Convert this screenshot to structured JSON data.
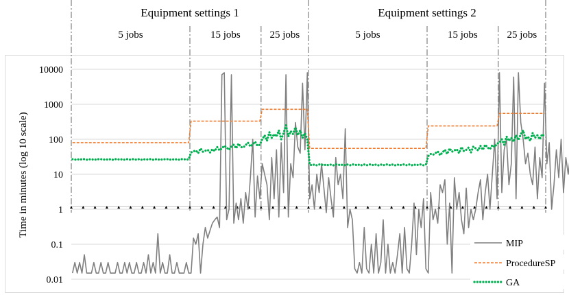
{
  "chart_data": {
    "type": "line",
    "ylabel": "Time in minutes (log 10 scale)",
    "yscale": "log",
    "ylim": [
      0.01,
      10000
    ],
    "yticks": [
      "10000",
      "1000",
      "100",
      "10",
      "1",
      "0.1",
      "0.01"
    ],
    "grid": true,
    "legend_position": "bottom-right",
    "groups": [
      {
        "label": "Equipment settings 1",
        "sections": [
          {
            "label": "5 jobs",
            "runs": 50
          },
          {
            "label": "15 jobs",
            "runs": 30
          },
          {
            "label": "25 jobs",
            "runs": 20
          }
        ]
      },
      {
        "label": "Equipment settings 2",
        "sections": [
          {
            "label": "5 jobs",
            "runs": 50
          },
          {
            "label": "15 jobs",
            "runs": 30
          },
          {
            "label": "25 jobs",
            "runs": 20
          }
        ]
      }
    ],
    "series": [
      {
        "name": "MIP",
        "color": "#7f7f7f",
        "style": "solid",
        "values": [
          0.015,
          0.03,
          0.015,
          0.03,
          0.015,
          0.05,
          0.015,
          0.015,
          0.015,
          0.03,
          0.015,
          0.015,
          0.03,
          0.015,
          0.015,
          0.03,
          0.015,
          0.015,
          0.015,
          0.03,
          0.015,
          0.015,
          0.03,
          0.015,
          0.03,
          0.015,
          0.015,
          0.03,
          0.015,
          0.015,
          0.03,
          0.015,
          0.05,
          0.015,
          0.03,
          0.015,
          0.2,
          0.015,
          0.03,
          0.015,
          0.015,
          0.05,
          0.015,
          0.015,
          0.03,
          0.015,
          0.015,
          0.015,
          0.03,
          0.015,
          0.015,
          0.15,
          0.1,
          0.2,
          0.015,
          0.1,
          0.3,
          0.15,
          0.25,
          0.4,
          0.5,
          0.6,
          0.3,
          7000,
          8000,
          0.5,
          1,
          7000,
          0.4,
          1.5,
          0.5,
          2,
          0.4,
          3,
          1,
          8,
          100,
          0.6,
          9,
          2,
          20,
          10,
          5,
          0.5,
          30,
          2,
          50,
          0.6,
          80,
          3,
          7000,
          0.6,
          20,
          8,
          300,
          60,
          40,
          4000,
          50,
          8000,
          2,
          5,
          1,
          10,
          3,
          20,
          4,
          0.8,
          8,
          2,
          0.6,
          30,
          5,
          10,
          2,
          200,
          0.3,
          1,
          0.5,
          0.02,
          0.015,
          0.03,
          0.015,
          0.3,
          0.02,
          0.015,
          0.1,
          0.015,
          0.2,
          0.015,
          0.03,
          0.5,
          0.015,
          0.1,
          0.015,
          0.03,
          0.015,
          0.05,
          0.2,
          0.015,
          0.3,
          0.02,
          0.015,
          0.1,
          1.5,
          0.05,
          1,
          0.3,
          2,
          0.02,
          0.015,
          3,
          0.5,
          1,
          0.4,
          5,
          3,
          7,
          0.1,
          1.5,
          0.015,
          8,
          1,
          3,
          0.5,
          0.2,
          4,
          0.3,
          1,
          0.5,
          1,
          3,
          7,
          0.5,
          3,
          10,
          1,
          10,
          100,
          2,
          8000,
          3,
          50,
          100,
          5,
          20,
          6000,
          2,
          8000,
          300,
          100,
          20,
          40,
          10,
          5,
          60,
          2,
          30,
          8,
          4000,
          20,
          80,
          1,
          5,
          50,
          8,
          100,
          3,
          30,
          10,
          40,
          5,
          500,
          1,
          200,
          100,
          6,
          3000,
          9,
          400
        ]
      },
      {
        "name": "ProcedureSP",
        "color": "#ed7d31",
        "style": "dashed",
        "values": [
          80,
          80,
          80,
          80,
          80,
          80,
          80,
          80,
          80,
          80,
          80,
          80,
          80,
          80,
          80,
          80,
          80,
          80,
          80,
          80,
          80,
          80,
          80,
          80,
          80,
          80,
          80,
          80,
          80,
          80,
          80,
          80,
          80,
          80,
          80,
          80,
          80,
          80,
          80,
          80,
          80,
          80,
          80,
          80,
          80,
          80,
          80,
          80,
          80,
          80,
          330,
          330,
          330,
          330,
          330,
          330,
          330,
          330,
          330,
          330,
          330,
          330,
          330,
          330,
          330,
          330,
          330,
          330,
          330,
          330,
          330,
          330,
          330,
          330,
          330,
          330,
          330,
          330,
          330,
          330,
          720,
          720,
          720,
          720,
          720,
          720,
          720,
          720,
          720,
          720,
          720,
          720,
          720,
          720,
          720,
          720,
          720,
          720,
          720,
          720,
          55,
          55,
          55,
          55,
          55,
          55,
          55,
          55,
          55,
          55,
          55,
          55,
          55,
          55,
          55,
          55,
          55,
          55,
          55,
          55,
          55,
          55,
          55,
          55,
          55,
          55,
          55,
          55,
          55,
          55,
          55,
          55,
          55,
          55,
          55,
          55,
          55,
          55,
          55,
          55,
          55,
          55,
          55,
          55,
          55,
          55,
          55,
          55,
          55,
          55,
          240,
          240,
          240,
          240,
          240,
          240,
          240,
          240,
          240,
          240,
          240,
          240,
          240,
          240,
          240,
          240,
          240,
          240,
          240,
          240,
          240,
          240,
          240,
          240,
          240,
          240,
          240,
          240,
          240,
          240,
          550,
          550,
          550,
          550,
          550,
          550,
          550,
          550,
          550,
          550,
          550,
          550,
          550,
          550,
          550,
          550,
          550,
          550,
          550,
          550
        ]
      },
      {
        "name": "GA",
        "color": "#00b050",
        "style": "dotted",
        "values": [
          27,
          26,
          27,
          26,
          27,
          27,
          26,
          27,
          26,
          27,
          26,
          27,
          27,
          26,
          27,
          26,
          27,
          26,
          27,
          27,
          26,
          27,
          26,
          27,
          26,
          27,
          27,
          26,
          27,
          26,
          27,
          26,
          27,
          27,
          26,
          27,
          26,
          27,
          26,
          27,
          27,
          26,
          27,
          26,
          27,
          26,
          27,
          27,
          26,
          27,
          42,
          45,
          48,
          40,
          55,
          44,
          47,
          50,
          42,
          52,
          46,
          60,
          48,
          55,
          65,
          58,
          50,
          62,
          70,
          55,
          75,
          60,
          58,
          68,
          80,
          62,
          72,
          85,
          65,
          70,
          100,
          130,
          90,
          160,
          110,
          140,
          120,
          180,
          100,
          150,
          250,
          120,
          170,
          140,
          220,
          130,
          180,
          110,
          150,
          100,
          19,
          18,
          19,
          18,
          19,
          19,
          18,
          19,
          18,
          19,
          18,
          19,
          19,
          18,
          19,
          18,
          19,
          18,
          19,
          19,
          18,
          19,
          18,
          19,
          18,
          19,
          19,
          18,
          19,
          18,
          19,
          18,
          19,
          19,
          18,
          19,
          18,
          19,
          18,
          19,
          19,
          18,
          19,
          18,
          19,
          18,
          19,
          19,
          18,
          19,
          33,
          38,
          36,
          40,
          45,
          35,
          42,
          50,
          38,
          55,
          44,
          48,
          52,
          40,
          60,
          46,
          50,
          58,
          42,
          62,
          55,
          48,
          65,
          50,
          70,
          58,
          52,
          68,
          60,
          75,
          80,
          100,
          70,
          120,
          90,
          110,
          85,
          130,
          95,
          140,
          180,
          100,
          120,
          90,
          150,
          110,
          130,
          100,
          140,
          120
        ]
      }
    ]
  }
}
